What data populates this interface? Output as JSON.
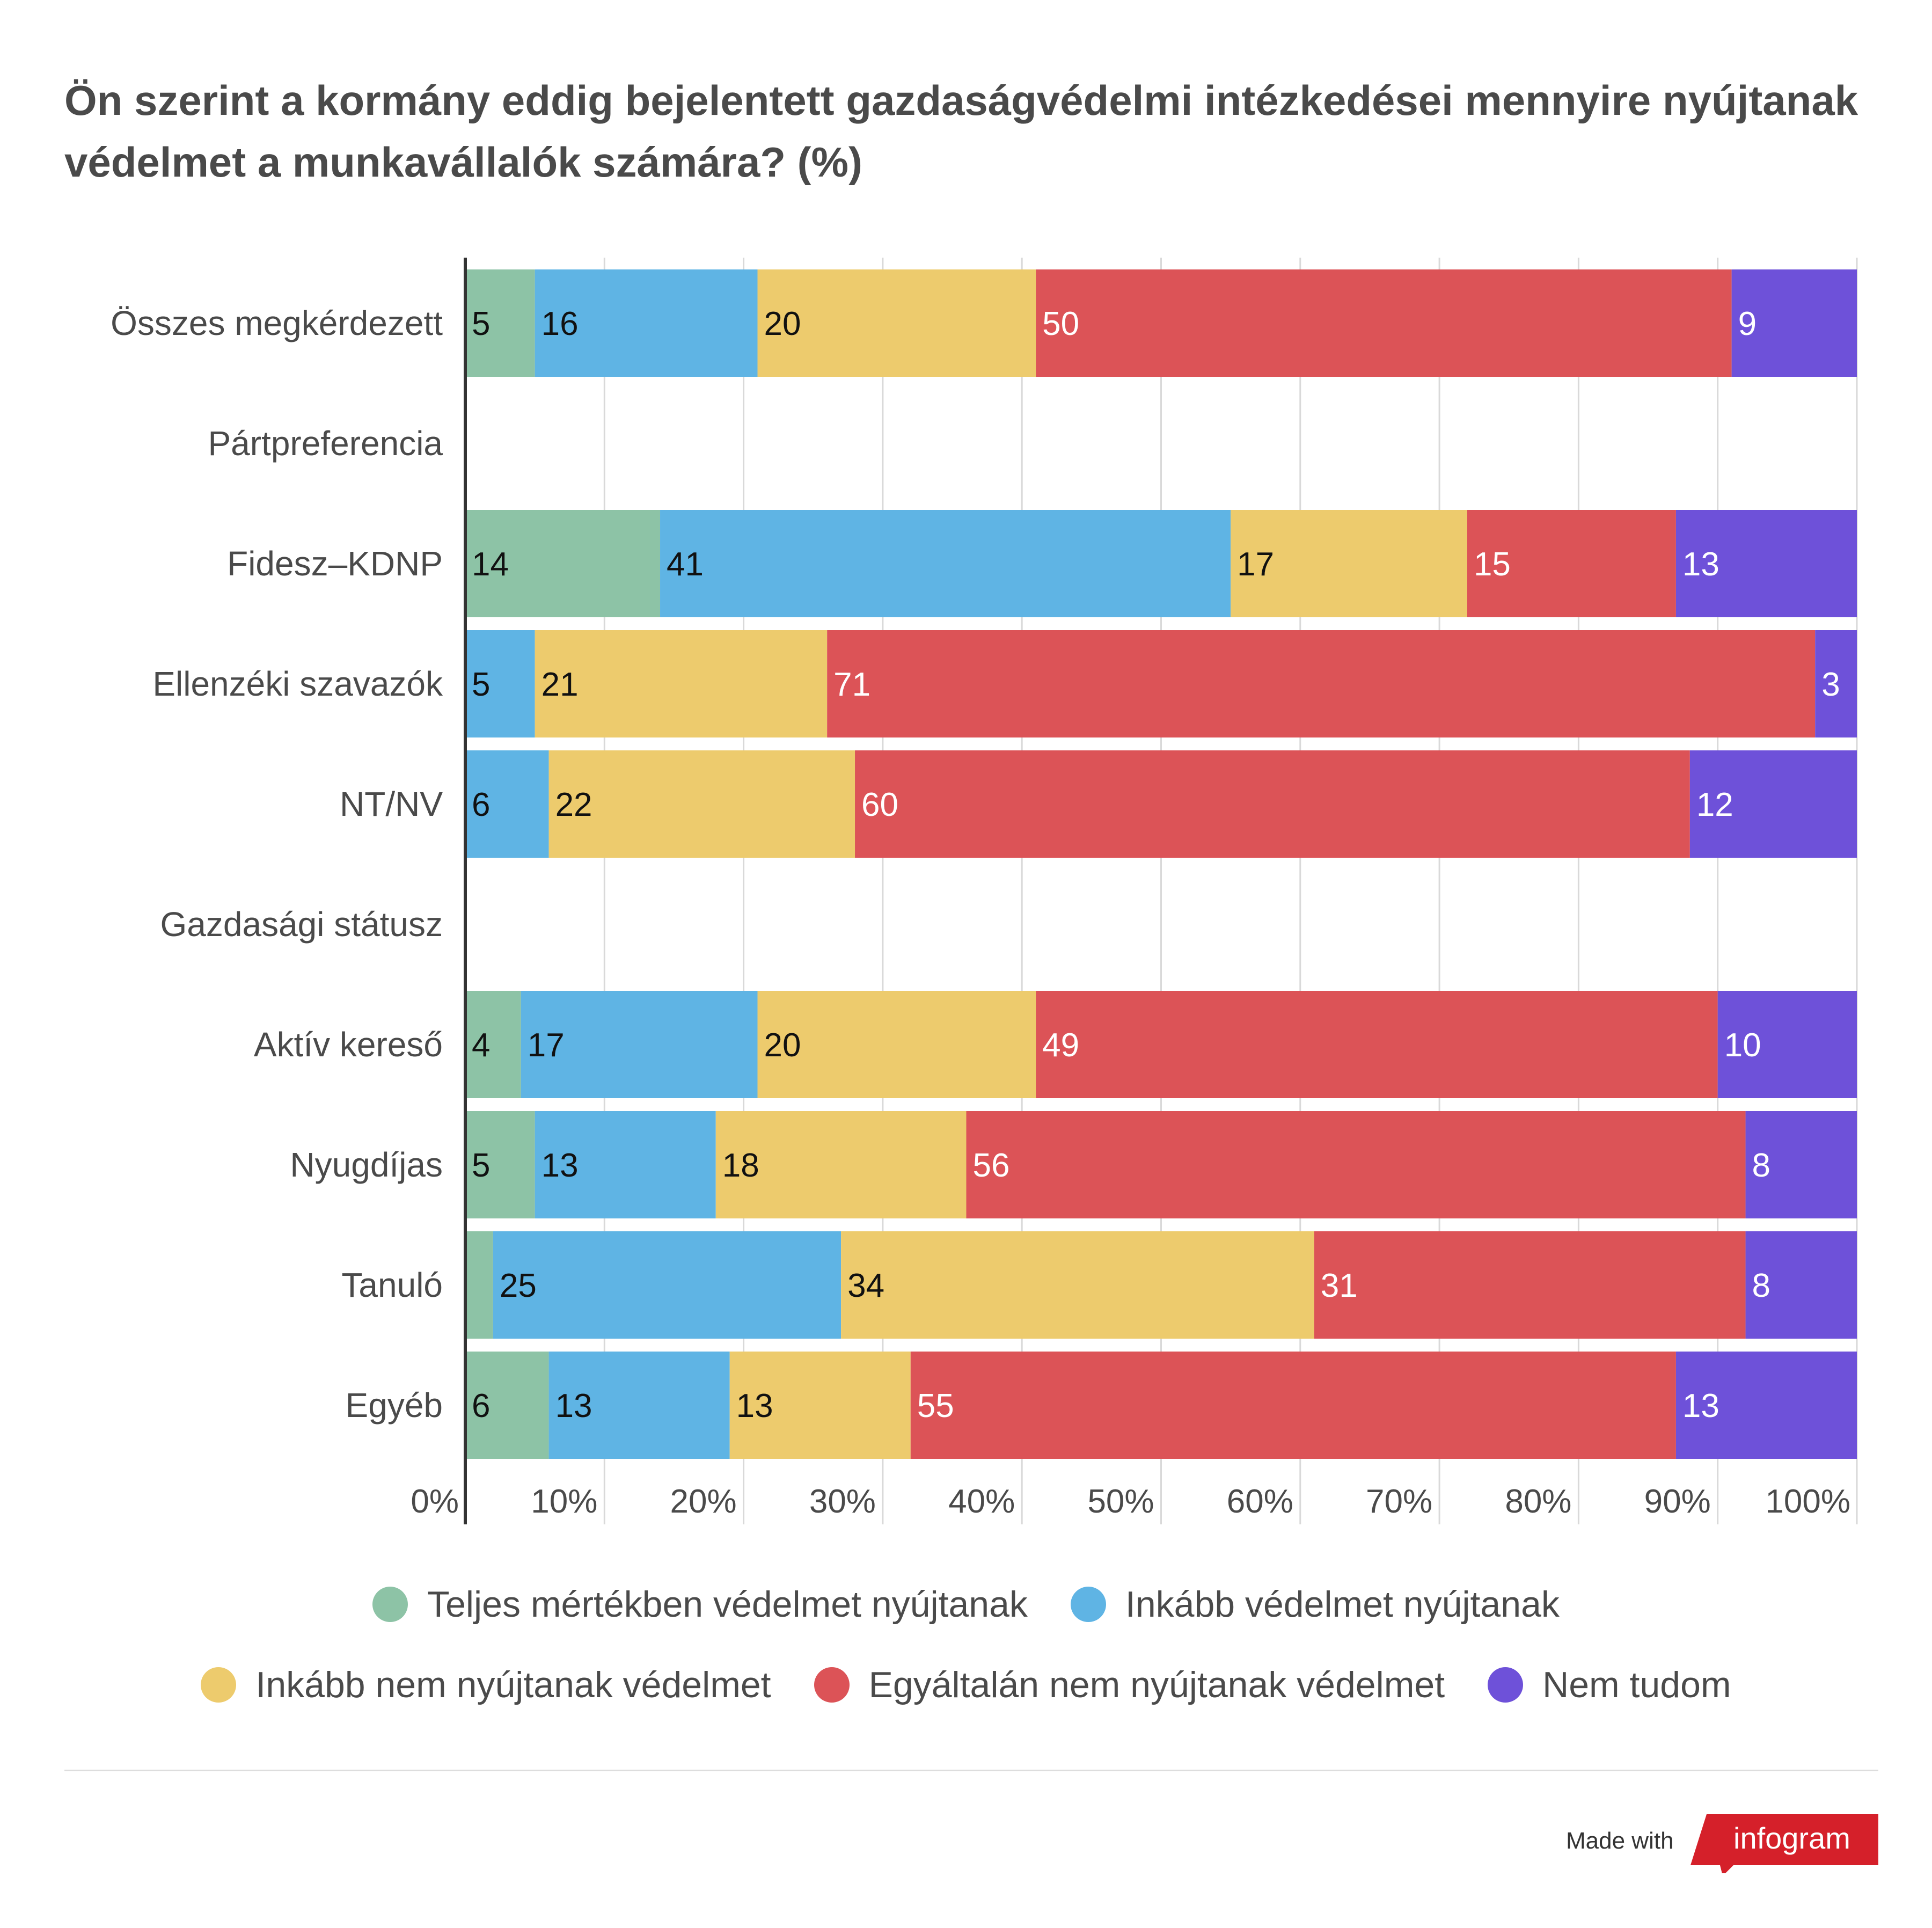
{
  "title": "Ön szerint a kormány eddig bejelentett gazdaságvédelmi intézkedései mennyire nyújtanak védelmet a munkavállalók számára? (%)",
  "chart_data": {
    "type": "bar",
    "orientation": "horizontal",
    "stacked": true,
    "title": "Ön szerint a kormány eddig bejelentett gazdaságvédelmi intézkedései mennyire nyújtanak védelmet a munkavállalók számára? (%)",
    "categories": [
      "Összes megkérdezett",
      "Pártpreferencia",
      "Fidesz–KDNP",
      "Ellenzéki szavazók",
      "NT/NV",
      "Gazdasági státusz",
      "Aktív kereső",
      "Nyugdíjas",
      "Tanuló",
      "Egyéb"
    ],
    "series": [
      {
        "name": "Teljes mértékben védelmet nyújtanak",
        "color": "#8dc3a6",
        "values": [
          5,
          null,
          14,
          0,
          0,
          null,
          4,
          5,
          2,
          6
        ]
      },
      {
        "name": "Inkább védelmet nyújtanak",
        "color": "#5fb4e4",
        "values": [
          16,
          null,
          41,
          5,
          6,
          null,
          17,
          13,
          25,
          13
        ]
      },
      {
        "name": "Inkább nem nyújtanak védelmet",
        "color": "#edcb6d",
        "values": [
          20,
          null,
          17,
          21,
          22,
          null,
          20,
          18,
          34,
          13
        ]
      },
      {
        "name": "Egyáltalán nem nyújtanak védelmet",
        "color": "#dc5357",
        "values": [
          50,
          null,
          15,
          71,
          60,
          null,
          49,
          56,
          31,
          55
        ]
      },
      {
        "name": "Nem tudom",
        "color": "#6e51d9",
        "values": [
          9,
          null,
          13,
          3,
          12,
          null,
          10,
          8,
          8,
          13
        ]
      }
    ],
    "xlim": [
      0,
      100
    ],
    "x_ticks": [
      "0%",
      "10%",
      "20%",
      "30%",
      "40%",
      "50%",
      "60%",
      "70%",
      "80%",
      "90%",
      "100%"
    ],
    "grid": true,
    "legend_position": "bottom"
  },
  "footer": {
    "made_with": "Made with",
    "brand": "infogram"
  }
}
